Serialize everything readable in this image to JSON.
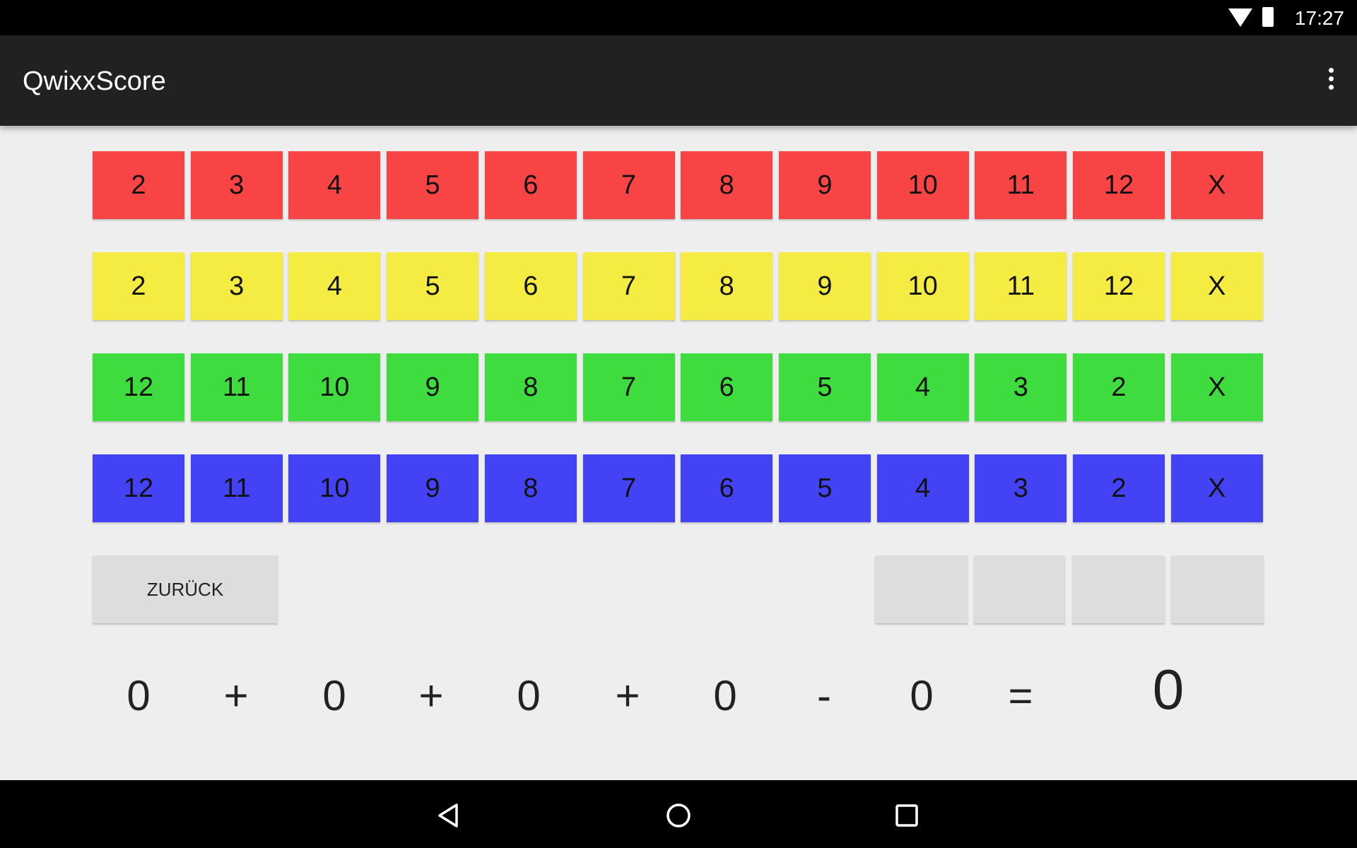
{
  "status_bar": {
    "time": "17:27",
    "icons": [
      "wifi-icon",
      "battery-icon"
    ]
  },
  "app_bar": {
    "title": "QwixxScore",
    "menu_icon": "more-vert-icon"
  },
  "rows": [
    {
      "color": "red",
      "hex": "#f84444",
      "cells": [
        "2",
        "3",
        "4",
        "5",
        "6",
        "7",
        "8",
        "9",
        "10",
        "11",
        "12",
        "X"
      ]
    },
    {
      "color": "yellow",
      "hex": "#f5ec43",
      "cells": [
        "2",
        "3",
        "4",
        "5",
        "6",
        "7",
        "8",
        "9",
        "10",
        "11",
        "12",
        "X"
      ]
    },
    {
      "color": "green",
      "hex": "#3fdc3f",
      "cells": [
        "12",
        "11",
        "10",
        "9",
        "8",
        "7",
        "6",
        "5",
        "4",
        "3",
        "2",
        "X"
      ]
    },
    {
      "color": "blue",
      "hex": "#4343f5",
      "cells": [
        "12",
        "11",
        "10",
        "9",
        "8",
        "7",
        "6",
        "5",
        "4",
        "3",
        "2",
        "X"
      ]
    }
  ],
  "controls": {
    "back_label": "ZURÜCK",
    "penalty_boxes": [
      "",
      "",
      "",
      ""
    ]
  },
  "score_line": {
    "items": [
      "0",
      "+",
      "0",
      "+",
      "0",
      "+",
      "0",
      "-",
      "0",
      "="
    ],
    "total": "0"
  },
  "nav_bar": {
    "icons": [
      "back-icon",
      "home-icon",
      "recents-icon"
    ]
  }
}
